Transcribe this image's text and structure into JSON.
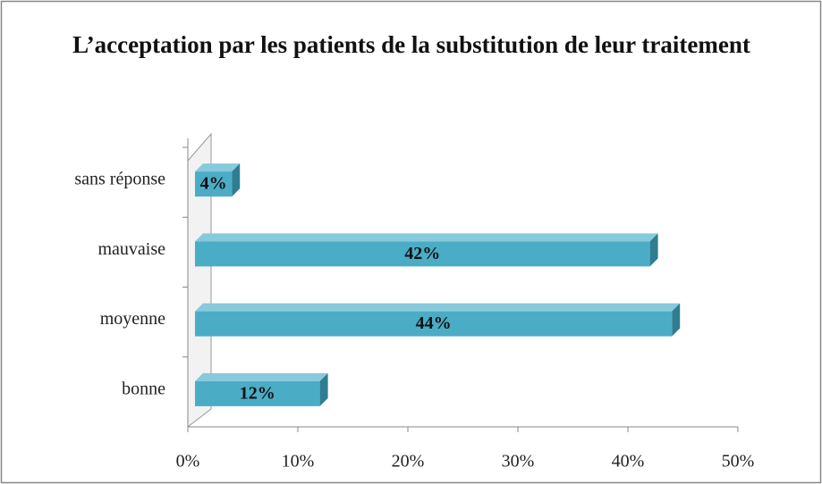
{
  "chart_data": {
    "type": "bar",
    "orientation": "horizontal",
    "title": "L’acceptation par les patients de la substitution de leur traitement",
    "categories": [
      "sans réponse",
      "mauvaise",
      "moyenne",
      "bonne"
    ],
    "values": [
      4,
      42,
      44,
      12
    ],
    "value_labels": [
      "4%",
      "42%",
      "44%",
      "12%"
    ],
    "color": "#4bacc6",
    "xlim": [
      0,
      50
    ],
    "xticks": [
      {
        "value": 0,
        "label": "0%"
      },
      {
        "value": 10,
        "label": "10%"
      },
      {
        "value": 20,
        "label": "20%"
      },
      {
        "value": 30,
        "label": "30%"
      },
      {
        "value": 40,
        "label": "40%"
      },
      {
        "value": 50,
        "label": "50%"
      }
    ]
  }
}
